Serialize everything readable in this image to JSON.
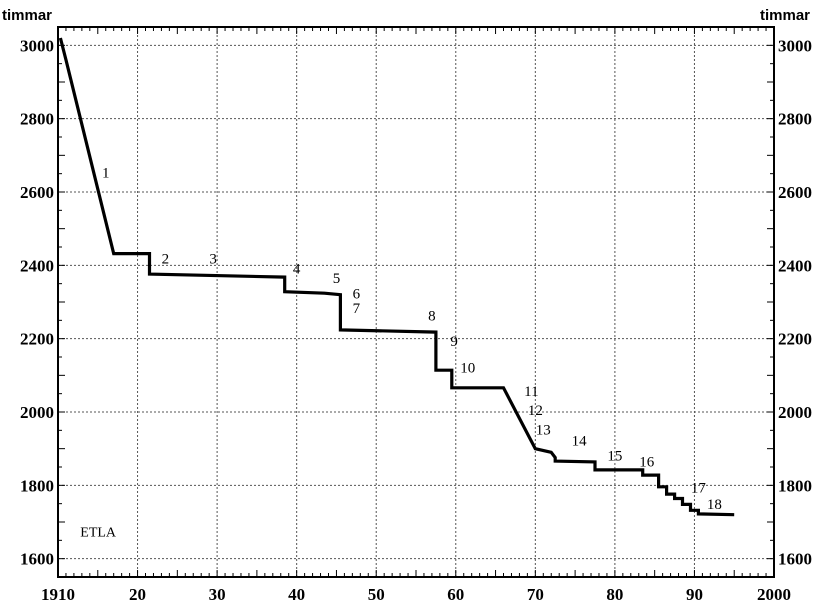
{
  "chart_data": {
    "type": "line",
    "title": "",
    "y_unit_left": "timmar",
    "y_unit_right": "timmar",
    "xlim": [
      1910,
      2000
    ],
    "ylim": [
      1550,
      3050
    ],
    "x_ticks": [
      {
        "value": 1910,
        "label": "1910"
      },
      {
        "value": 1920,
        "label": "20"
      },
      {
        "value": 1930,
        "label": "30"
      },
      {
        "value": 1940,
        "label": "40"
      },
      {
        "value": 1950,
        "label": "50"
      },
      {
        "value": 1960,
        "label": "60"
      },
      {
        "value": 1970,
        "label": "70"
      },
      {
        "value": 1980,
        "label": "80"
      },
      {
        "value": 1990,
        "label": "90"
      },
      {
        "value": 2000,
        "label": "2000"
      }
    ],
    "y_ticks": [
      {
        "value": 1600,
        "label": "1600"
      },
      {
        "value": 1800,
        "label": "1800"
      },
      {
        "value": 2000,
        "label": "2000"
      },
      {
        "value": 2200,
        "label": "2200"
      },
      {
        "value": 2400,
        "label": "2400"
      },
      {
        "value": 2600,
        "label": "2600"
      },
      {
        "value": 2800,
        "label": "2800"
      },
      {
        "value": 3000,
        "label": "3000"
      }
    ],
    "grid": true,
    "series": [
      {
        "points": [
          [
            1910.3,
            3020
          ],
          [
            1911,
            2960
          ],
          [
            1917,
            2432
          ],
          [
            1921.5,
            2432
          ],
          [
            1921.5,
            2376
          ],
          [
            1938.5,
            2368
          ],
          [
            1938.5,
            2328
          ],
          [
            1943.5,
            2324
          ],
          [
            1945.5,
            2320
          ],
          [
            1945.5,
            2224
          ],
          [
            1957.5,
            2218
          ],
          [
            1957.5,
            2114
          ],
          [
            1959.5,
            2114
          ],
          [
            1959.5,
            2066
          ],
          [
            1966,
            2066
          ],
          [
            1970,
            1900
          ],
          [
            1972,
            1890
          ],
          [
            1972.5,
            1876
          ],
          [
            1972.5,
            1866
          ],
          [
            1977.5,
            1864
          ],
          [
            1977.5,
            1842
          ],
          [
            1983.5,
            1842
          ],
          [
            1983.5,
            1828
          ],
          [
            1985.5,
            1828
          ],
          [
            1985.5,
            1796
          ],
          [
            1986.5,
            1796
          ],
          [
            1986.5,
            1776
          ],
          [
            1987.5,
            1776
          ],
          [
            1987.5,
            1764
          ],
          [
            1988.5,
            1764
          ],
          [
            1988.5,
            1748
          ],
          [
            1989.5,
            1748
          ],
          [
            1989.5,
            1732
          ],
          [
            1990.5,
            1732
          ],
          [
            1990.5,
            1722
          ],
          [
            1995,
            1720
          ]
        ]
      }
    ],
    "annotations": [
      {
        "text": "1",
        "x": 1916,
        "y": 2640
      },
      {
        "text": "2",
        "x": 1923.5,
        "y": 2405
      },
      {
        "text": "3",
        "x": 1929.5,
        "y": 2405
      },
      {
        "text": "4",
        "x": 1940,
        "y": 2378
      },
      {
        "text": "5",
        "x": 1945,
        "y": 2352
      },
      {
        "text": "6",
        "x": 1947.5,
        "y": 2310
      },
      {
        "text": "7",
        "x": 1947.5,
        "y": 2270
      },
      {
        "text": "8",
        "x": 1957,
        "y": 2250
      },
      {
        "text": "9",
        "x": 1959.8,
        "y": 2180
      },
      {
        "text": "10",
        "x": 1961.5,
        "y": 2108
      },
      {
        "text": "11",
        "x": 1969.5,
        "y": 2044
      },
      {
        "text": "12",
        "x": 1970,
        "y": 1992
      },
      {
        "text": "13",
        "x": 1971,
        "y": 1938
      },
      {
        "text": "14",
        "x": 1975.5,
        "y": 1908
      },
      {
        "text": "15",
        "x": 1980,
        "y": 1868
      },
      {
        "text": "16",
        "x": 1984,
        "y": 1852
      },
      {
        "text": "17",
        "x": 1990.5,
        "y": 1780
      },
      {
        "text": "18",
        "x": 1992.5,
        "y": 1736
      }
    ],
    "label_box": {
      "text": "ETLA",
      "x": 1912.8,
      "y": 1660
    }
  }
}
